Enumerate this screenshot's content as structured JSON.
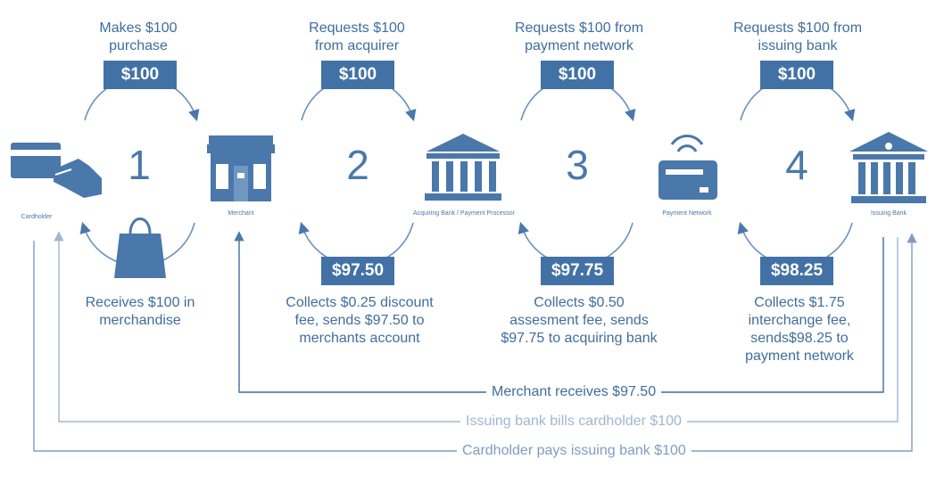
{
  "steps": [
    {
      "number": "1",
      "top_text": "Makes $100\npurchase",
      "top_amount": "$100",
      "bottom_text": "Receives $100 in\nmerchandise"
    },
    {
      "number": "2",
      "top_text": "Requests $100\nfrom acquirer",
      "top_amount": "$100",
      "bottom_amount": "$97.50",
      "bottom_text": "Collects $0.25 discount\nfee, sends $97.50 to\nmerchants account"
    },
    {
      "number": "3",
      "top_text": "Requests $100 from\npayment network",
      "top_amount": "$100",
      "bottom_amount": "$97.75",
      "bottom_text": "Collects $0.50\nassesment fee, sends\n$97.75 to acquiring bank"
    },
    {
      "number": "4",
      "top_text": "Requests $100 from\nissuing bank",
      "top_amount": "$100",
      "bottom_amount": "$98.25",
      "bottom_text": "Collects $1.75\ninterchange fee,\nsends$98.25 to\npayment network"
    }
  ],
  "entities": {
    "cardholder": "Cardholder",
    "merchant": "Merchant",
    "acquiring_bank": "Acquiring Bank / Payment Processor",
    "payment_network": "Payment Network",
    "issuing_bank": "Issuing Bank"
  },
  "flows": [
    {
      "label": "Merchant receives $97.50",
      "color": "#3f6e9d"
    },
    {
      "label": "Issuing bank bills cardholder $100",
      "color": "#9fb7d0"
    },
    {
      "label": "Cardholder pays issuing bank $100",
      "color": "#7f9dbf"
    }
  ],
  "colors": {
    "primary": "#4272a5",
    "text": "#3f6e9d",
    "light_line": "#9fb7d0"
  }
}
